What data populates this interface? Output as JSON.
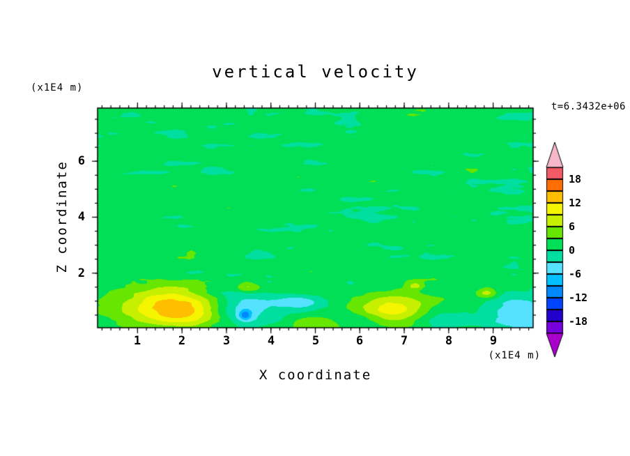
{
  "chart_data": {
    "type": "heatmap",
    "title": "vertical velocity",
    "time_label": "t=6.3432e+06",
    "xlabel": "X coordinate",
    "ylabel": "Z coordinate",
    "x_unit_label": "(x1E4 m)",
    "z_unit_label": "(x1E4 m)",
    "xlim": [
      0.1,
      9.9
    ],
    "zlim": [
      0.05,
      7.9
    ],
    "xticks": [
      1,
      2,
      3,
      4,
      5,
      6,
      7,
      8,
      9
    ],
    "xtick_labels": [
      "1",
      "2",
      "3",
      "4",
      "5",
      "6",
      "7",
      "8",
      "9"
    ],
    "zticks": [
      2,
      4,
      6
    ],
    "ztick_labels": [
      "6",
      "4",
      "2"
    ],
    "x_minor_step": 0.2,
    "z_minor_step": 0.5,
    "contour_interval": 3,
    "levels": [
      -21,
      -18,
      -15,
      -12,
      -9,
      -6,
      -3,
      0,
      3,
      6,
      9,
      12,
      15,
      18,
      21
    ],
    "colorbar_labels": [
      "18",
      "12",
      "6",
      "0",
      "-6",
      "-12",
      "-18"
    ],
    "palette_low_to_high": [
      "#AA00CC",
      "#7700DD",
      "#2200CC",
      "#0044FF",
      "#0088FF",
      "#00C0FF",
      "#55E2FF",
      "#00DFA0",
      "#00DF55",
      "#66E600",
      "#C6F000",
      "#F5F500",
      "#FFBE00",
      "#FF6E00",
      "#F25A66",
      "#F4B8C8"
    ],
    "field": {
      "base": 1.25,
      "seed": 11,
      "noise_octaves": [
        {
          "id": 1,
          "cx": 2.6,
          "cz": 1.1,
          "amp": 0.6
        },
        {
          "id": 2,
          "cx": 0.95,
          "cz": 0.33,
          "amp": 1.35
        },
        {
          "id": 3,
          "cx": 0.45,
          "cz": 0.16,
          "amp": 0.85
        },
        {
          "id": 4,
          "cx": 0.22,
          "cz": 0.085,
          "amp": 0.4
        }
      ],
      "blobs": [
        {
          "x": 1.65,
          "z": 0.85,
          "sx": 0.8,
          "sz": 0.5,
          "a": 10
        },
        {
          "x": 2.15,
          "z": 0.55,
          "sx": 0.55,
          "sz": 0.33,
          "a": 4.5
        },
        {
          "x": 6.75,
          "z": 0.7,
          "sx": 0.6,
          "sz": 0.38,
          "a": 9
        },
        {
          "x": 5.0,
          "z": 0.3,
          "sx": 0.5,
          "sz": 0.3,
          "a": 7.5
        },
        {
          "x": 3.5,
          "z": 1.5,
          "sx": 0.2,
          "sz": 0.15,
          "a": 6.5
        },
        {
          "x": 8.85,
          "z": 1.3,
          "sx": 0.16,
          "sz": 0.13,
          "a": 6.5
        },
        {
          "x": 7.25,
          "z": 1.55,
          "sx": 0.14,
          "sz": 0.11,
          "a": 5.5
        },
        {
          "x": 3.35,
          "z": 0.75,
          "sx": 0.5,
          "sz": 0.42,
          "a": -7
        },
        {
          "x": 3.42,
          "z": 0.5,
          "sx": 0.1,
          "sz": 0.13,
          "a": -8
        },
        {
          "x": 4.9,
          "z": 0.5,
          "sx": 0.55,
          "sz": 0.3,
          "a": -5
        },
        {
          "x": 4.55,
          "z": 0.95,
          "sx": 0.35,
          "sz": 0.18,
          "a": -4.5
        },
        {
          "x": 9.55,
          "z": 0.5,
          "sx": 0.55,
          "sz": 0.45,
          "a": -6.5
        },
        {
          "x": 7.9,
          "z": 0.35,
          "sx": 0.45,
          "sz": 0.28,
          "a": -3.5
        },
        {
          "x": 5.9,
          "z": 0.3,
          "sx": 0.4,
          "sz": 0.25,
          "a": -3
        }
      ]
    }
  }
}
